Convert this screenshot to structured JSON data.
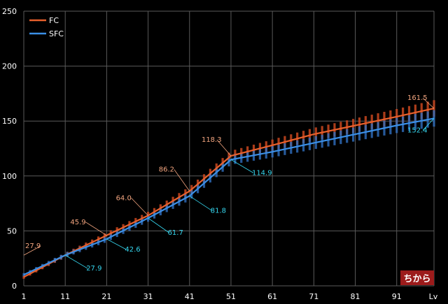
{
  "chart_data": {
    "type": "line",
    "xlabel": "Lv",
    "ylim": [
      0,
      250
    ],
    "xlim": [
      1,
      100
    ],
    "grid": true,
    "legend_position": "top-left",
    "x_ticks": [
      1,
      11,
      21,
      31,
      41,
      51,
      61,
      71,
      81,
      91
    ],
    "y_ticks": [
      0,
      50,
      100,
      150,
      200,
      250
    ],
    "badge_text": "ちから",
    "series": [
      {
        "name": "FC",
        "color": "#e8602c",
        "points": [
          [
            1,
            8
          ],
          [
            11,
            27.9
          ],
          [
            21,
            45.9
          ],
          [
            31,
            64.0
          ],
          [
            41,
            86.2
          ],
          [
            51,
            118.3
          ],
          [
            61,
            128
          ],
          [
            71,
            138
          ],
          [
            81,
            146
          ],
          [
            91,
            154
          ],
          [
            100,
            161.5
          ]
        ],
        "labels": [
          {
            "x": 1,
            "y": 27.9,
            "text": "27.9"
          },
          {
            "x": 21,
            "y": 45.9,
            "text": "45.9"
          },
          {
            "x": 31,
            "y": 64.0,
            "text": "64.0"
          },
          {
            "x": 41,
            "y": 86.2,
            "text": "86.2"
          },
          {
            "x": 51,
            "y": 118.3,
            "text": "118.3"
          },
          {
            "x": 100,
            "y": 161.5,
            "text": "161.5"
          }
        ]
      },
      {
        "name": "SFC",
        "color": "#3b8fe6",
        "points": [
          [
            1,
            10
          ],
          [
            11,
            27.9
          ],
          [
            21,
            42.6
          ],
          [
            31,
            61.7
          ],
          [
            41,
            81.8
          ],
          [
            51,
            114.9
          ],
          [
            61,
            122
          ],
          [
            71,
            130
          ],
          [
            81,
            138
          ],
          [
            91,
            146
          ],
          [
            100,
            152.4
          ]
        ],
        "labels": [
          {
            "x": 11,
            "y": 27.9,
            "text": "27.9"
          },
          {
            "x": 21,
            "y": 42.6,
            "text": "42.6"
          },
          {
            "x": 31,
            "y": 61.7,
            "text": "61.7"
          },
          {
            "x": 41,
            "y": 81.8,
            "text": "81.8"
          },
          {
            "x": 51,
            "y": 114.9,
            "text": "114.9"
          },
          {
            "x": 100,
            "y": 152.4,
            "text": "152.4"
          }
        ]
      }
    ]
  },
  "colors": {
    "background": "#000000",
    "grid": "#5a5a5a",
    "fc_label": "#f3a57f",
    "sfc_label": "#35d6ee",
    "badge_bg": "#9c1b1b"
  }
}
